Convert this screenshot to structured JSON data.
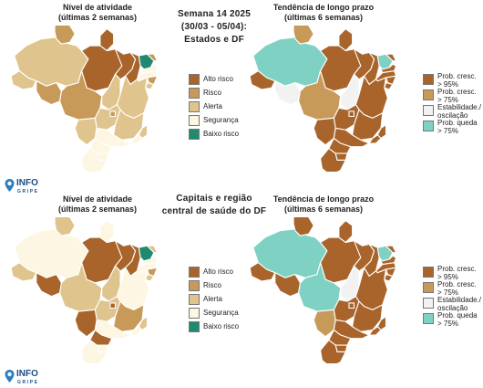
{
  "header": {
    "line1": "Semana 14 2025",
    "line2": "(30/03 - 05/04):",
    "line3": "Estados e DF"
  },
  "subheader": {
    "line1": "Capitais e região",
    "line2": "central de saúde do DF"
  },
  "panels": {
    "activity_title_1": "Nível de atividade",
    "activity_title_2": "(últimas 2 semanas)",
    "trend_title_1": "Tendência de longo prazo",
    "trend_title_2": "(últimas 6 semanas)"
  },
  "activity_legend": [
    {
      "label": "Alto risco",
      "color": "#a8642a"
    },
    {
      "label": "Risco",
      "color": "#c89a5a"
    },
    {
      "label": "Alerta",
      "color": "#dfc48e"
    },
    {
      "label": "Segurança",
      "color": "#fcf6e2"
    },
    {
      "label": "Baixo risco",
      "color": "#1f8a70"
    }
  ],
  "trend_legend": [
    {
      "label1": "Prob. cresc.",
      "label2": "> 95%",
      "color": "#a8642a"
    },
    {
      "label1": "Prob. cresc.",
      "label2": "> 75%",
      "color": "#c89a5a"
    },
    {
      "label1": "Estabilidade./",
      "label2": "oscilação",
      "color": "#f2f2f2"
    },
    {
      "label1": "Prob. queda",
      "label2": "> 75%",
      "color": "#7fd1c4"
    }
  ],
  "logo": {
    "name": "INFO",
    "sub": "GRIPE"
  },
  "map_data": {
    "states_activity": {
      "AM": "Alerta",
      "PA": "Alto risco",
      "MT": "Risco",
      "RO": "Risco",
      "AC": "Alerta",
      "RR": "Risco",
      "AP": "Alto risco",
      "TO": "Alerta",
      "MA": "Alto risco",
      "PI": "Alto risco",
      "CE": "Baixo risco",
      "RN": "Risco",
      "PB": "Segurança",
      "PE": "Segurança",
      "AL": "Risco",
      "SE": "Alerta",
      "BA": "Alerta",
      "GO": "Alerta",
      "DF": "Risco",
      "MS": "Alerta",
      "MG": "Alerta",
      "ES": "Alerta",
      "RJ": "Segurança",
      "SP": "Segurança",
      "PR": "Segurança",
      "SC": "Segurança",
      "RS": "Segurança"
    },
    "states_trend": {
      "AM": "Prob. queda > 75%",
      "PA": "Prob. cresc. > 95%",
      "MT": "Prob. cresc. > 75%",
      "RO": "Estabilidade./oscilação",
      "AC": "Prob. cresc. > 95%",
      "RR": "Prob. cresc. > 75%",
      "AP": "Prob. cresc. > 95%",
      "TO": "Estabilidade./oscilação",
      "MA": "Prob. cresc. > 95%",
      "PI": "Prob. cresc. > 95%",
      "CE": "Prob. queda > 75%",
      "RN": "Prob. cresc. > 95%",
      "PB": "Prob. cresc. > 95%",
      "PE": "Prob. cresc. > 95%",
      "AL": "Prob. cresc. > 95%",
      "SE": "Prob. cresc. > 95%",
      "BA": "Prob. cresc. > 95%",
      "GO": "Prob. cresc. > 95%",
      "DF": "Prob. cresc. > 95%",
      "MS": "Prob. cresc. > 95%",
      "MG": "Prob. cresc. > 95%",
      "ES": "Prob. cresc. > 95%",
      "RJ": "Prob. cresc. > 95%",
      "SP": "Prob. cresc. > 95%",
      "PR": "Prob. cresc. > 95%",
      "SC": "Prob. cresc. > 95%",
      "RS": "Prob. cresc. > 95%"
    },
    "capitals_activity": {
      "AM": "Segurança",
      "PA": "Alto risco",
      "MT": "Alerta",
      "RO": "Alto risco",
      "AC": "Alerta",
      "RR": "Alerta",
      "AP": "Segurança",
      "TO": "Alerta",
      "MA": "Alto risco",
      "PI": "Alto risco",
      "CE": "Baixo risco",
      "RN": "Alerta",
      "PB": "Segurança",
      "PE": "Segurança",
      "AL": "Risco",
      "SE": "Alerta",
      "BA": "Segurança",
      "GO": "Alerta",
      "DF": "Alto risco",
      "MS": "Alto risco",
      "MG": "Risco",
      "ES": "Alerta",
      "RJ": "Segurança",
      "SP": "Segurança",
      "PR": "Alto risco",
      "SC": "Segurança",
      "RS": "Segurança"
    },
    "capitals_trend": {
      "AM": "Prob. queda > 75%",
      "PA": "Prob. cresc. > 95%",
      "MT": "Prob. queda > 75%",
      "RO": "Prob. cresc. > 95%",
      "AC": "Prob. cresc. > 95%",
      "RR": "Prob. cresc. > 95%",
      "AP": "Prob. cresc. > 95%",
      "TO": "Estabilidade./oscilação",
      "MA": "Prob. cresc. > 95%",
      "PI": "Prob. cresc. > 95%",
      "CE": "Prob. queda > 75%",
      "RN": "Prob. cresc. > 95%",
      "PB": "Prob. cresc. > 95%",
      "PE": "Prob. cresc. > 95%",
      "AL": "Prob. cresc. > 95%",
      "SE": "Prob. cresc. > 95%",
      "BA": "Prob. cresc. > 95%",
      "GO": "Prob. cresc. > 95%",
      "DF": "Prob. cresc. > 95%",
      "MS": "Prob. cresc. > 75%",
      "MG": "Prob. cresc. > 95%",
      "ES": "Prob. cresc. > 95%",
      "RJ": "Prob. cresc. > 95%",
      "SP": "Prob. cresc. > 95%",
      "PR": "Prob. cresc. > 95%",
      "SC": "Prob. cresc. > 95%",
      "RS": "Prob. cresc. > 95%"
    }
  }
}
